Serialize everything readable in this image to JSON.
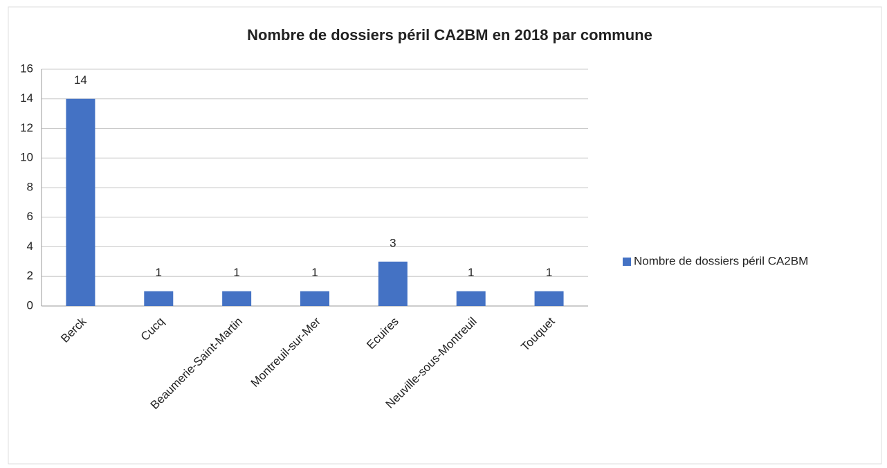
{
  "chart_data": {
    "type": "bar",
    "title": "Nombre de dossiers péril CA2BM en 2018 par commune",
    "categories": [
      "Berck",
      "Cucq",
      "Beaumerie-Saint-Martin",
      "Montreuil-sur-Mer",
      "Ecuires",
      "Neuville-sous-Montreuil",
      "Touquet"
    ],
    "series": [
      {
        "name": "Nombre de dossiers péril CA2BM",
        "color": "#4472c4",
        "values": [
          14,
          1,
          1,
          1,
          3,
          1,
          1
        ]
      }
    ],
    "ylim": [
      0,
      16
    ],
    "yticks": [
      0,
      2,
      4,
      6,
      8,
      10,
      12,
      14,
      16
    ],
    "grid": true,
    "legend": "right"
  }
}
